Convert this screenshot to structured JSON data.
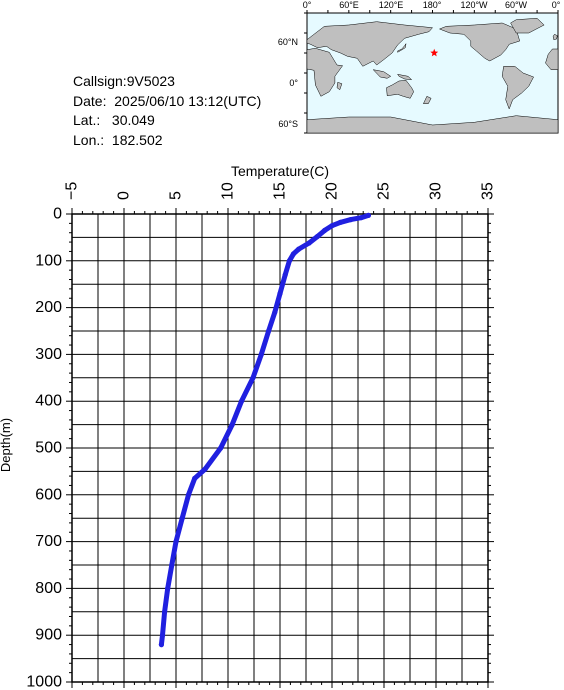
{
  "info": {
    "callsign": "Callsign:9V5023",
    "date": "Date:  2025/06/10 13:12(UTC)",
    "lat": "Lat.:   30.049",
    "lon": "Lon.:  182.502"
  },
  "map": {
    "lon_labels": [
      "0°",
      "60°E",
      "120°E",
      "180°",
      "120°W",
      "60°W",
      "0°"
    ],
    "lat_labels": [
      "60°N",
      "0°",
      "60°S"
    ],
    "marker": {
      "lat": 30.049,
      "lon": 182.502,
      "color": "#ff0000"
    },
    "ocean_color": "#e6faff",
    "land_color": "#bfbfbf"
  },
  "chart_data": {
    "type": "line",
    "xlabel": "Temperature(C)",
    "ylabel": "Depth(m)",
    "xlim": [
      -5,
      35
    ],
    "ylim": [
      0,
      1000
    ],
    "y_inverted": true,
    "x_axis_position": "top",
    "grid": true,
    "x_ticks": [
      -5,
      0,
      5,
      10,
      15,
      20,
      25,
      30,
      35
    ],
    "y_ticks": [
      0,
      100,
      200,
      300,
      400,
      500,
      600,
      700,
      800,
      900,
      1000
    ],
    "series": [
      {
        "color": "#2020e0",
        "points": [
          [
            23.5,
            3
          ],
          [
            22.8,
            8
          ],
          [
            21.8,
            12
          ],
          [
            20.8,
            18
          ],
          [
            20.0,
            25
          ],
          [
            19.3,
            35
          ],
          [
            18.6,
            48
          ],
          [
            17.8,
            62
          ],
          [
            16.8,
            75
          ],
          [
            16.3,
            85
          ],
          [
            15.9,
            100
          ],
          [
            15.5,
            130
          ],
          [
            15.0,
            170
          ],
          [
            14.5,
            210
          ],
          [
            13.9,
            250
          ],
          [
            13.2,
            300
          ],
          [
            12.4,
            350
          ],
          [
            11.3,
            400
          ],
          [
            10.4,
            450
          ],
          [
            9.3,
            500
          ],
          [
            7.8,
            545
          ],
          [
            6.8,
            565
          ],
          [
            6.2,
            600
          ],
          [
            5.6,
            650
          ],
          [
            5.0,
            700
          ],
          [
            4.6,
            750
          ],
          [
            4.2,
            800
          ],
          [
            3.9,
            850
          ],
          [
            3.7,
            900
          ],
          [
            3.6,
            920
          ]
        ]
      }
    ]
  }
}
